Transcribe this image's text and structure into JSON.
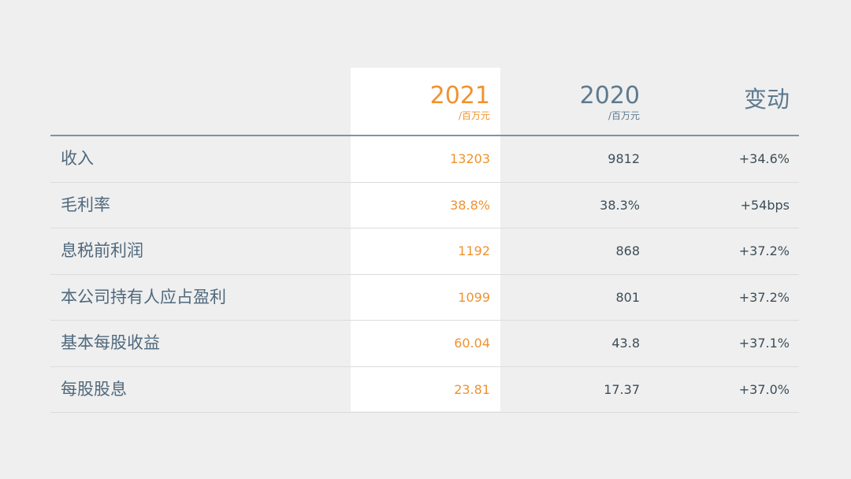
{
  "header": {
    "col2021": {
      "year": "2021",
      "unit": "/百万元"
    },
    "col2020": {
      "year": "2020",
      "unit": "/百万元"
    },
    "change": "变动"
  },
  "colors": {
    "accent": "#f0922e",
    "header_text": "#5d7a8f",
    "label_text": "#50697d",
    "value_text": "#3d4d58",
    "background": "#efefef",
    "highlight_column": "#ffffff"
  },
  "rows": [
    {
      "label": "收入",
      "v2021": "13203",
      "v2020": "9812",
      "change": "+34.6%"
    },
    {
      "label": "毛利率",
      "v2021": "38.8%",
      "v2020": "38.3%",
      "change": "+54bps"
    },
    {
      "label": "息税前利润",
      "v2021": "1192",
      "v2020": "868",
      "change": "+37.2%"
    },
    {
      "label": "本公司持有人应占盈利",
      "v2021": "1099",
      "v2020": "801",
      "change": "+37.2%"
    },
    {
      "label": "基本每股收益",
      "v2021": "60.04",
      "v2020": "43.8",
      "change": "+37.1%"
    },
    {
      "label": "每股股息",
      "v2021": "23.81",
      "v2020": "17.37",
      "change": "+37.0%"
    }
  ]
}
